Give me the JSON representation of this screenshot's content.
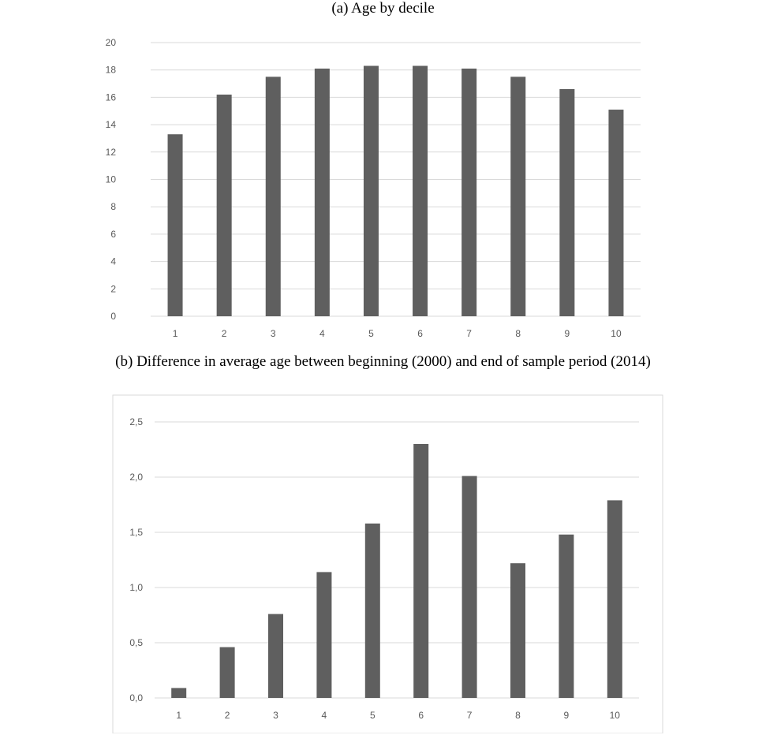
{
  "chart_data": [
    {
      "type": "bar",
      "title": "(a) Age by decile",
      "categories": [
        "1",
        "2",
        "3",
        "4",
        "5",
        "6",
        "7",
        "8",
        "9",
        "10"
      ],
      "values": [
        13.3,
        16.2,
        17.5,
        18.1,
        18.3,
        18.3,
        18.1,
        17.5,
        16.6,
        15.1
      ],
      "ylim": [
        0,
        20
      ],
      "yticks": [
        "0",
        "2",
        "4",
        "6",
        "8",
        "10",
        "12",
        "14",
        "16",
        "18",
        "20"
      ],
      "xlabel": "",
      "ylabel": "",
      "grid": true,
      "bar_color": "#5f5f5f"
    },
    {
      "type": "bar",
      "title": "(b) Difference in average age between beginning (2000) and end of sample period (2014)",
      "categories": [
        "1",
        "2",
        "3",
        "4",
        "5",
        "6",
        "7",
        "8",
        "9",
        "10"
      ],
      "values": [
        0.09,
        0.46,
        0.76,
        1.14,
        1.58,
        2.3,
        2.01,
        1.22,
        1.48,
        1.79
      ],
      "ylim": [
        0,
        2.5
      ],
      "yticks": [
        "0,0",
        "0,5",
        "1,0",
        "1,5",
        "2,0",
        "2,5"
      ],
      "xlabel": "",
      "ylabel": "",
      "grid": true,
      "bar_color": "#5f5f5f"
    }
  ]
}
